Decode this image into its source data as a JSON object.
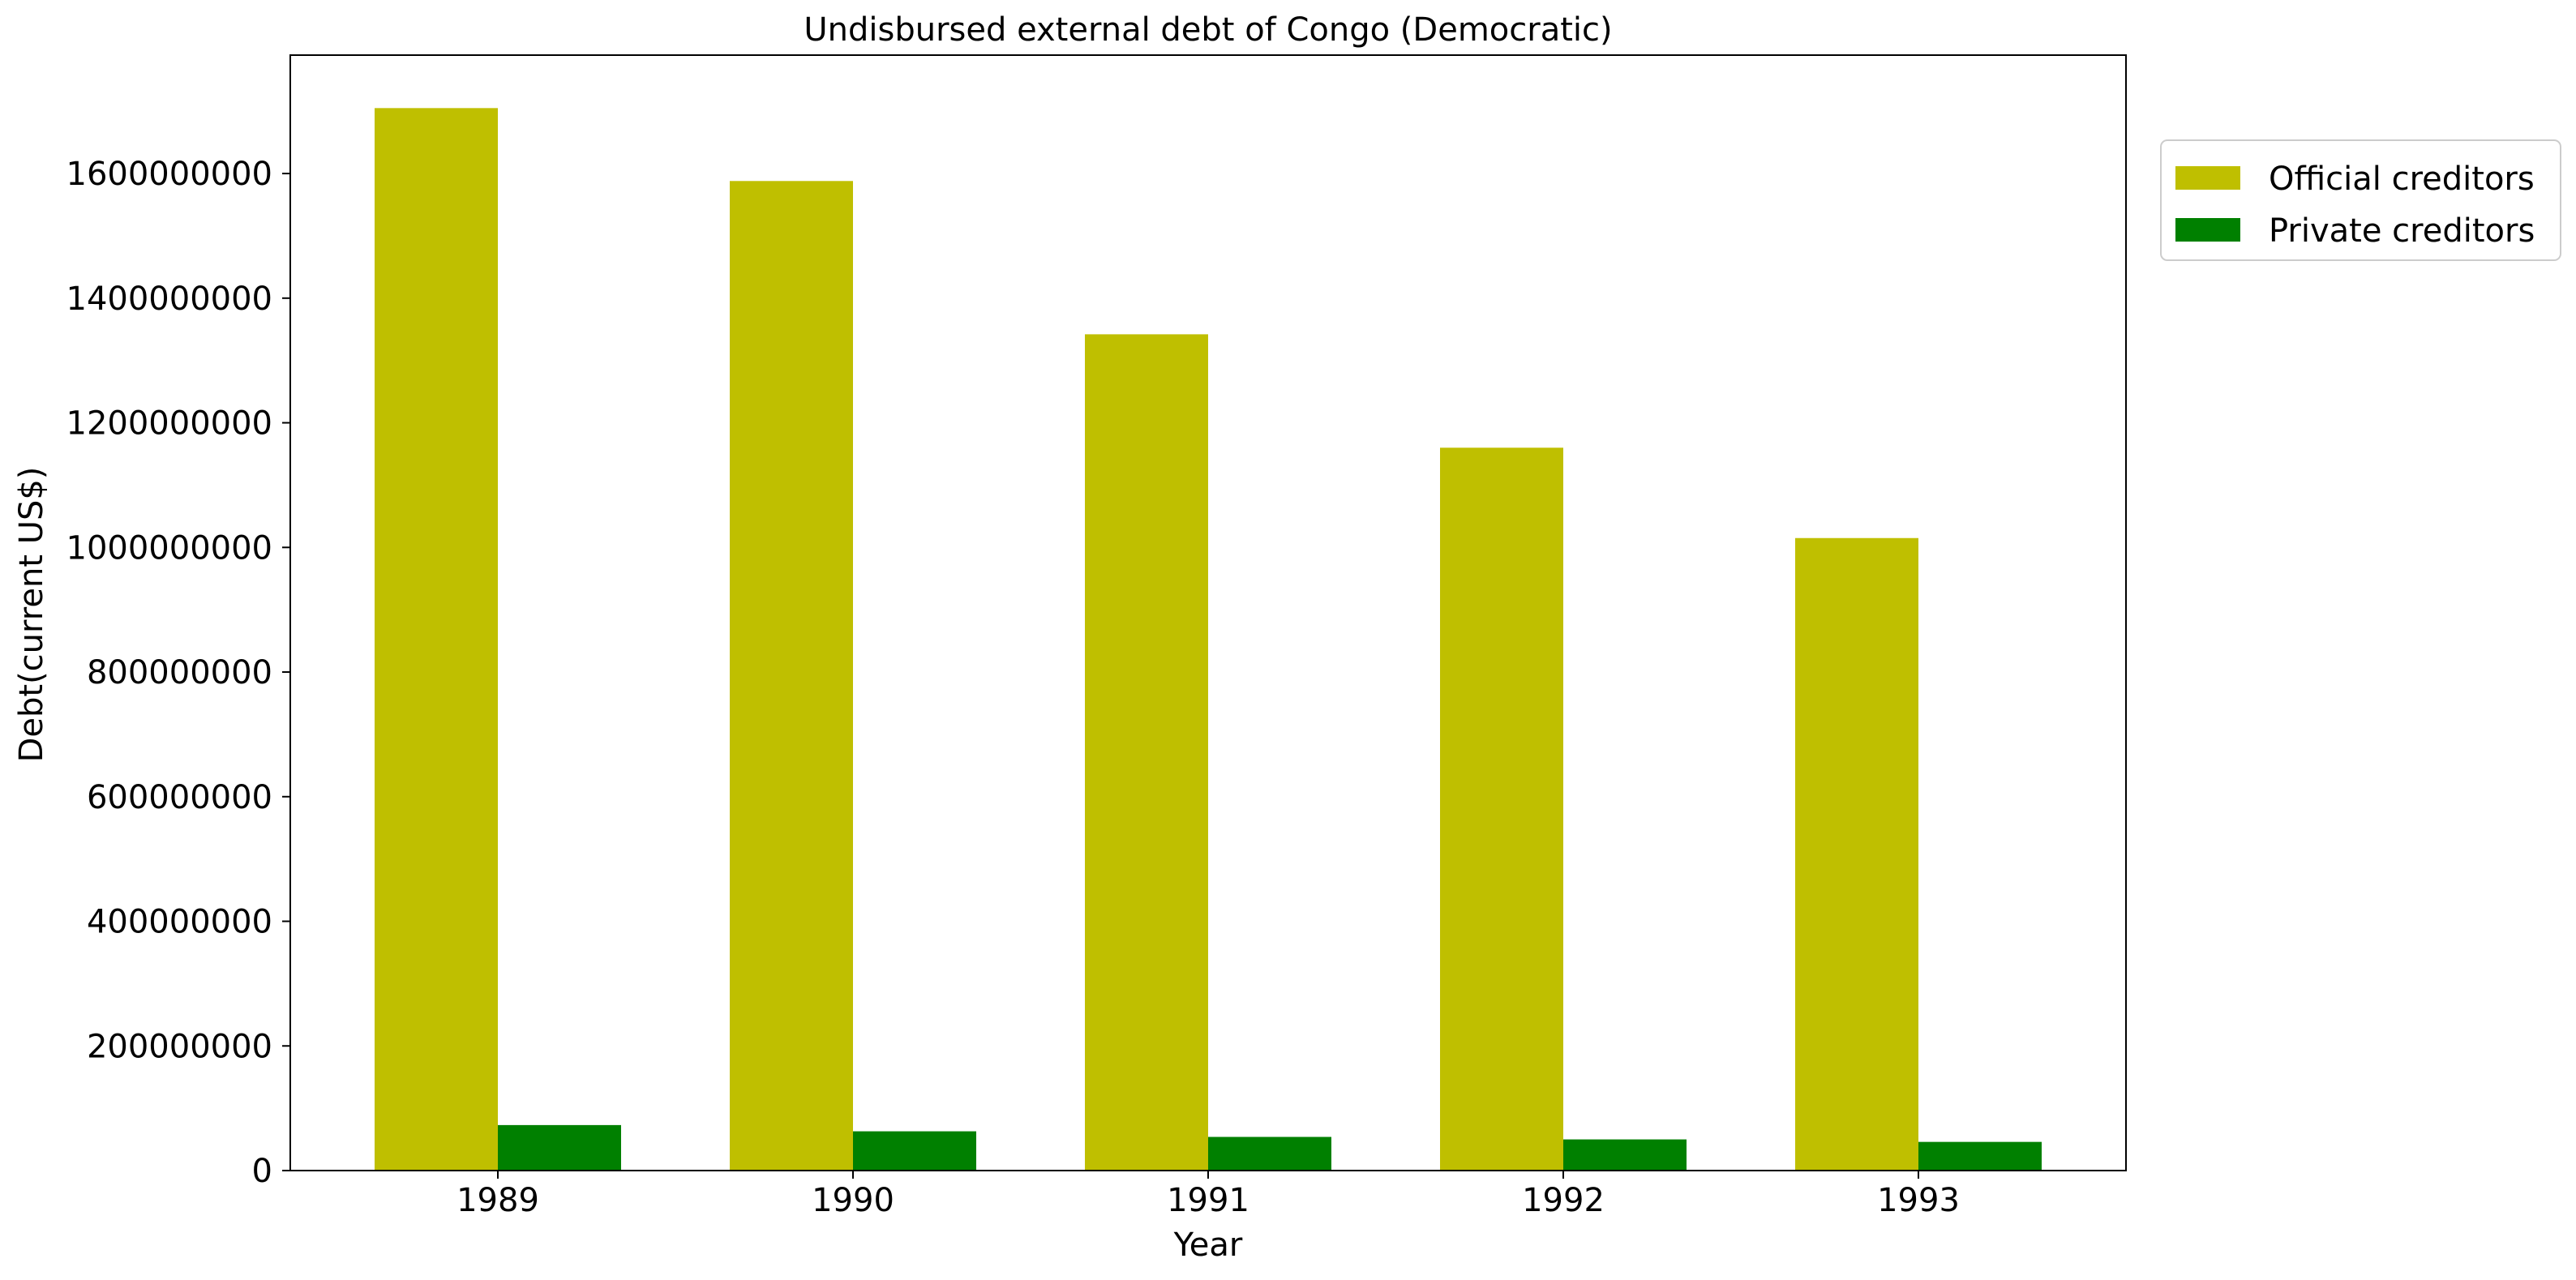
{
  "chart_data": {
    "type": "bar",
    "title": "Undisbursed external debt of Congo (Democratic)",
    "xlabel": "Year",
    "ylabel": "Debt(current US$)",
    "categories": [
      "1989",
      "1990",
      "1991",
      "1992",
      "1993"
    ],
    "series": [
      {
        "name": "Official creditors",
        "color": "#bfbf00",
        "values": [
          1705000000,
          1588000000,
          1342000000,
          1160000000,
          1015000000
        ]
      },
      {
        "name": "Private creditors",
        "color": "#008000",
        "values": [
          73000000,
          63000000,
          54000000,
          50000000,
          46000000
        ]
      }
    ],
    "ylim": [
      0,
      1790000000
    ],
    "yticks": [
      0,
      200000000,
      400000000,
      600000000,
      800000000,
      1000000000,
      1200000000,
      1400000000,
      1600000000
    ],
    "ytick_labels": [
      "0",
      "200000000",
      "400000000",
      "600000000",
      "800000000",
      "1000000000",
      "1200000000",
      "1400000000",
      "1600000000"
    ],
    "grid": false,
    "legend_position": "upper-right-outside"
  }
}
